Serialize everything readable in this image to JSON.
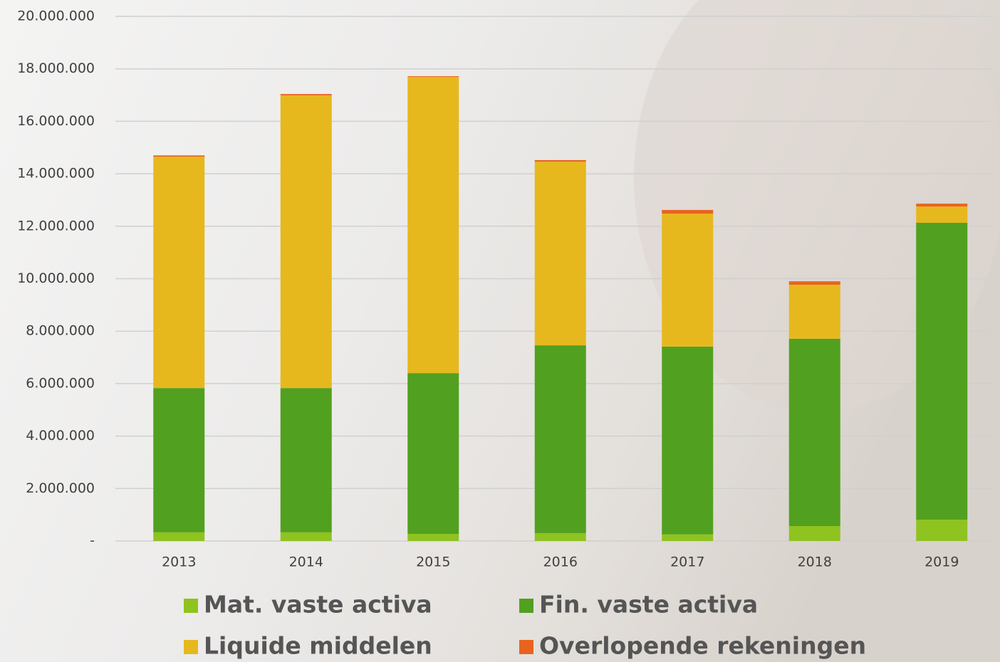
{
  "chart_data": {
    "type": "stacked_bar",
    "categories": [
      "2013",
      "2014",
      "2015",
      "2016",
      "2017",
      "2018",
      "2019"
    ],
    "series": [
      {
        "name": "Mat. vaste activa",
        "color": "#8fc31f",
        "values": [
          330000,
          330000,
          270000,
          300000,
          250000,
          570000,
          810000
        ]
      },
      {
        "name": "Fin. vaste activa",
        "color": "#52a020",
        "values": [
          5500000,
          5500000,
          6130000,
          7160000,
          7160000,
          7140000,
          11320000
        ]
      },
      {
        "name": "Liquide middelen",
        "color": "#e6b81e",
        "values": [
          8820000,
          11160000,
          11290000,
          7000000,
          5070000,
          2060000,
          620000
        ]
      },
      {
        "name": "Overlopende rekeningen",
        "color": "#e8641e",
        "values": [
          50000,
          50000,
          30000,
          60000,
          140000,
          130000,
          110000
        ]
      }
    ],
    "ylim": [
      0,
      20000000
    ],
    "yticks": [
      {
        "value": 0,
        "label": "-"
      },
      {
        "value": 2000000,
        "label": "2.000.000"
      },
      {
        "value": 4000000,
        "label": "4.000.000"
      },
      {
        "value": 6000000,
        "label": "6.000.000"
      },
      {
        "value": 8000000,
        "label": "8.000.000"
      },
      {
        "value": 10000000,
        "label": "10.000.000"
      },
      {
        "value": 12000000,
        "label": "12.000.000"
      },
      {
        "value": 14000000,
        "label": "14.000.000"
      },
      {
        "value": 16000000,
        "label": "16.000.000"
      },
      {
        "value": 18000000,
        "label": "18.000.000"
      },
      {
        "value": 20000000,
        "label": "20.000.000"
      }
    ],
    "grid": true,
    "legend": "bottom"
  }
}
